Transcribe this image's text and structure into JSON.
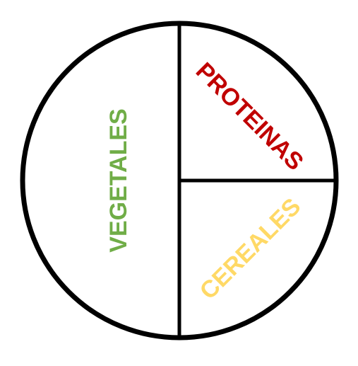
{
  "plate": {
    "stroke_color": "#000000",
    "background": "#ffffff"
  },
  "sections": {
    "vegetables": {
      "label": "VEGETALES",
      "color": "#70ad47"
    },
    "proteins": {
      "label": "PROTEINAS",
      "color": "#c00000"
    },
    "cereals": {
      "label": "CEREALES",
      "color": "#ffd966"
    }
  }
}
